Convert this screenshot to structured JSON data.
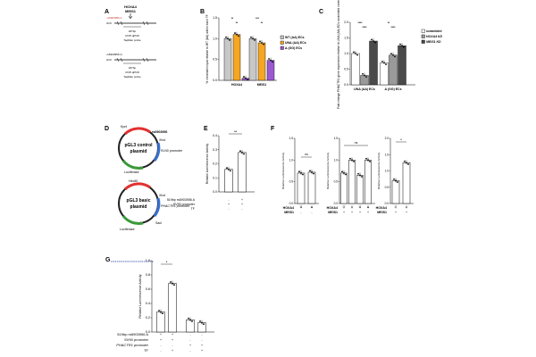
{
  "panels": {
    "A": {
      "letter": "A",
      "gene1": "HOXA4",
      "gene2": "MEIS1",
      "chr": "chr6",
      "snp_a": "rs6903956 A",
      "snp_g": "rs6903956 G",
      "bp": "187bp",
      "chip": "ChIP-qPCR",
      "probe": "TaqMan probe"
    },
    "B": {
      "letter": "B"
    },
    "C": {
      "letter": "C"
    },
    "D": {
      "letter": "D",
      "p1_name": "pGL3 control plasmid",
      "p1_line1": "pGL3 control",
      "p1_line2": "plasmid",
      "snp": "rs6903956",
      "kpnl": "KpnI",
      "xhol": "XhoI",
      "sv40": "SV40 promoter",
      "luc": "Luciferase",
      "hind": "HindIII",
      "p2_line1": "pGL3 basic",
      "p2_line2": "plasmid",
      "phactr1": "PHACTR1 promoter",
      "sacl": "SacI"
    },
    "E": {
      "letter": "E",
      "row1": "519bp rs6903956 A",
      "row2": "SV90 promoter",
      "row3": "TF",
      "sig": "**"
    },
    "F": {
      "letter": "F",
      "ns": "ns",
      "sig": "*",
      "row_hoxa4": "HOXA4",
      "row_meis1": "MEIS1"
    },
    "G": {
      "letter": "G",
      "row1": "519bp rs6903956 A",
      "row2": "SV90 promoter",
      "row3": "PHACTR1 promoter",
      "row4": "TF",
      "sig": "*"
    }
  },
  "chart_data": [
    {
      "panel": "B",
      "type": "bar",
      "ylabel": "% chromatin input relative to WT (AA) within each TF",
      "categories": [
        "HOXA4",
        "MEIS1"
      ],
      "series": [
        {
          "name": "WT (AA) ECs",
          "color": "#c8c8c8",
          "values": [
            1.0,
            1.0
          ]
        },
        {
          "name": "UNΔ (AA) ECs",
          "color": "#f5a623",
          "values": [
            1.1,
            0.9
          ]
        },
        {
          "name": "Δ (GG) ECs",
          "color": "#9b59d0",
          "values": [
            0.05,
            0.48
          ]
        }
      ],
      "ylim": [
        0,
        1.5
      ],
      "yticks": [
        "0.0",
        "0.5",
        "1.0",
        "1.5"
      ],
      "significance": [
        "**",
        "**",
        "***",
        "**"
      ],
      "legend": "right"
    },
    {
      "panel": "C",
      "type": "bar",
      "ylabel": "Fold change PHACTR1 gene expression relative to UNΔ (AA) ECs scrambled control",
      "categories": [
        "UNΔ (AA) ECs",
        "Δ (GG) ECs"
      ],
      "series": [
        {
          "name": "scrambled",
          "color": "#ffffff",
          "values": [
            1.0,
            0.7
          ]
        },
        {
          "name": "HOXA4 KD",
          "color": "#9a9a9a",
          "values": [
            0.3,
            0.95
          ]
        },
        {
          "name": "MEIS1 KD",
          "color": "#4a4a4a",
          "values": [
            1.4,
            1.25
          ]
        }
      ],
      "ylim": [
        0,
        2.0
      ],
      "yticks": [
        "0.0",
        "0.5",
        "1.0",
        "1.5",
        "2.0"
      ],
      "significance": [
        "****",
        "****",
        "**",
        "****"
      ],
      "legend": "right"
    },
    {
      "panel": "E",
      "type": "bar",
      "ylabel": "Relative Luminescence Activity",
      "categories": [
        "-",
        "+"
      ],
      "series": [
        {
          "name": "",
          "color": "#ffffff",
          "values": [
            0.16,
            0.28
          ]
        }
      ],
      "ylim": [
        0.0,
        0.4
      ],
      "yticks": [
        "0.0",
        "0.1",
        "0.2",
        "0.3",
        "0.4"
      ],
      "row1": [
        "-",
        "+"
      ],
      "row2": [
        "+",
        "+"
      ],
      "row3": [
        "-",
        "-"
      ]
    },
    {
      "panel": "F1",
      "type": "bar",
      "ylabel": "Relative Luminescence Activity",
      "categories": [
        "G",
        "A"
      ],
      "series": [
        {
          "name": "",
          "color": "#ffffff",
          "values": [
            0.7,
            0.72
          ]
        }
      ],
      "ylim": [
        0.0,
        1.5
      ],
      "yticks": [
        "0.0",
        "0.5",
        "1.0",
        "1.5"
      ],
      "hoxa4": [
        "+",
        "+"
      ],
      "meis1": [
        "-",
        "-"
      ]
    },
    {
      "panel": "F2",
      "type": "bar",
      "ylabel": "Relative Luminescence Activity",
      "categories": [
        "G",
        "A",
        "G",
        "A"
      ],
      "series": [
        {
          "name": "",
          "color": "#ffffff",
          "values": [
            0.7,
            1.0,
            0.65,
            1.0
          ]
        }
      ],
      "ylim": [
        0.0,
        1.5
      ],
      "yticks": [
        "0.0",
        "0.5",
        "1.0",
        "1.5"
      ],
      "hoxa4": [
        "-",
        "-",
        "+",
        "+"
      ],
      "meis1": [
        "+",
        "+",
        "+",
        "+"
      ]
    },
    {
      "panel": "F3",
      "type": "bar",
      "ylabel": "Relative Luminescence Activity",
      "categories": [
        "G",
        "A"
      ],
      "series": [
        {
          "name": "",
          "color": "#ffffff",
          "values": [
            0.7,
            1.25
          ]
        }
      ],
      "ylim": [
        0.0,
        2.0
      ],
      "yticks": [
        "0.0",
        "0.5",
        "1.0",
        "1.5",
        "2.0"
      ],
      "hoxa4": [
        "-",
        "-"
      ],
      "meis1": [
        "+",
        "+"
      ]
    },
    {
      "panel": "G",
      "type": "bar",
      "ylabel": "Relative Luminescence Activity",
      "categories": [
        "1",
        "2",
        "3",
        "4"
      ],
      "series": [
        {
          "name": "",
          "color": "#ffffff",
          "values": [
            0.28,
            0.68,
            0.17,
            0.13
          ]
        }
      ],
      "ylim": [
        0.0,
        1.0
      ],
      "yticks": [
        "0.0",
        "0.2",
        "0.4",
        "0.6",
        "0.8",
        "1.0"
      ],
      "row1": [
        "+",
        "+",
        "-",
        "-"
      ],
      "row2": [
        "+",
        "+",
        "-",
        "-"
      ],
      "row3": [
        "-",
        "-",
        "+",
        "+"
      ],
      "row4": [
        "-",
        "+",
        "-",
        "+"
      ]
    }
  ]
}
